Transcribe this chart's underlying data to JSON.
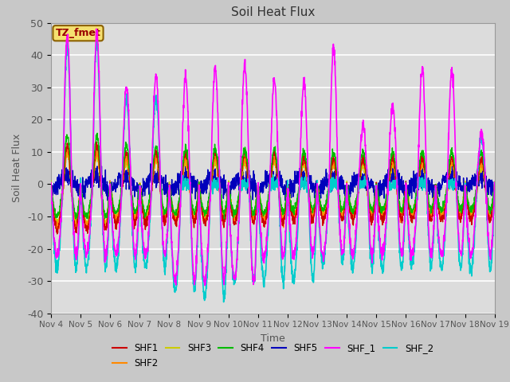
{
  "title": "Soil Heat Flux",
  "xlabel": "Time",
  "ylabel": "Soil Heat Flux",
  "ylim": [
    -40,
    50
  ],
  "yticks": [
    -40,
    -30,
    -20,
    -10,
    0,
    10,
    20,
    30,
    40,
    50
  ],
  "xtick_labels": [
    "Nov 4",
    "Nov 5",
    "Nov 6",
    "Nov 7",
    "Nov 8",
    "Nov 9",
    "Nov 10",
    "Nov 11",
    "Nov 12",
    "Nov 13",
    "Nov 14",
    "Nov 15",
    "Nov 16",
    "Nov 17",
    "Nov 18",
    "Nov 19"
  ],
  "annotation_text": "TZ_fmet",
  "annotation_bg": "#f5e070",
  "annotation_border": "#8b6000",
  "series_colors": {
    "SHF1": "#cc0000",
    "SHF2": "#ff8800",
    "SHF3": "#cccc00",
    "SHF4": "#00bb00",
    "SHF5": "#0000bb",
    "SHF_1": "#ff00ff",
    "SHF_2": "#00cccc"
  },
  "bg_color": "#dcdcdc",
  "grid_color": "#ffffff",
  "font_color": "#555555",
  "linewidth": 1.0,
  "n_days": 15,
  "samples_per_day": 144
}
